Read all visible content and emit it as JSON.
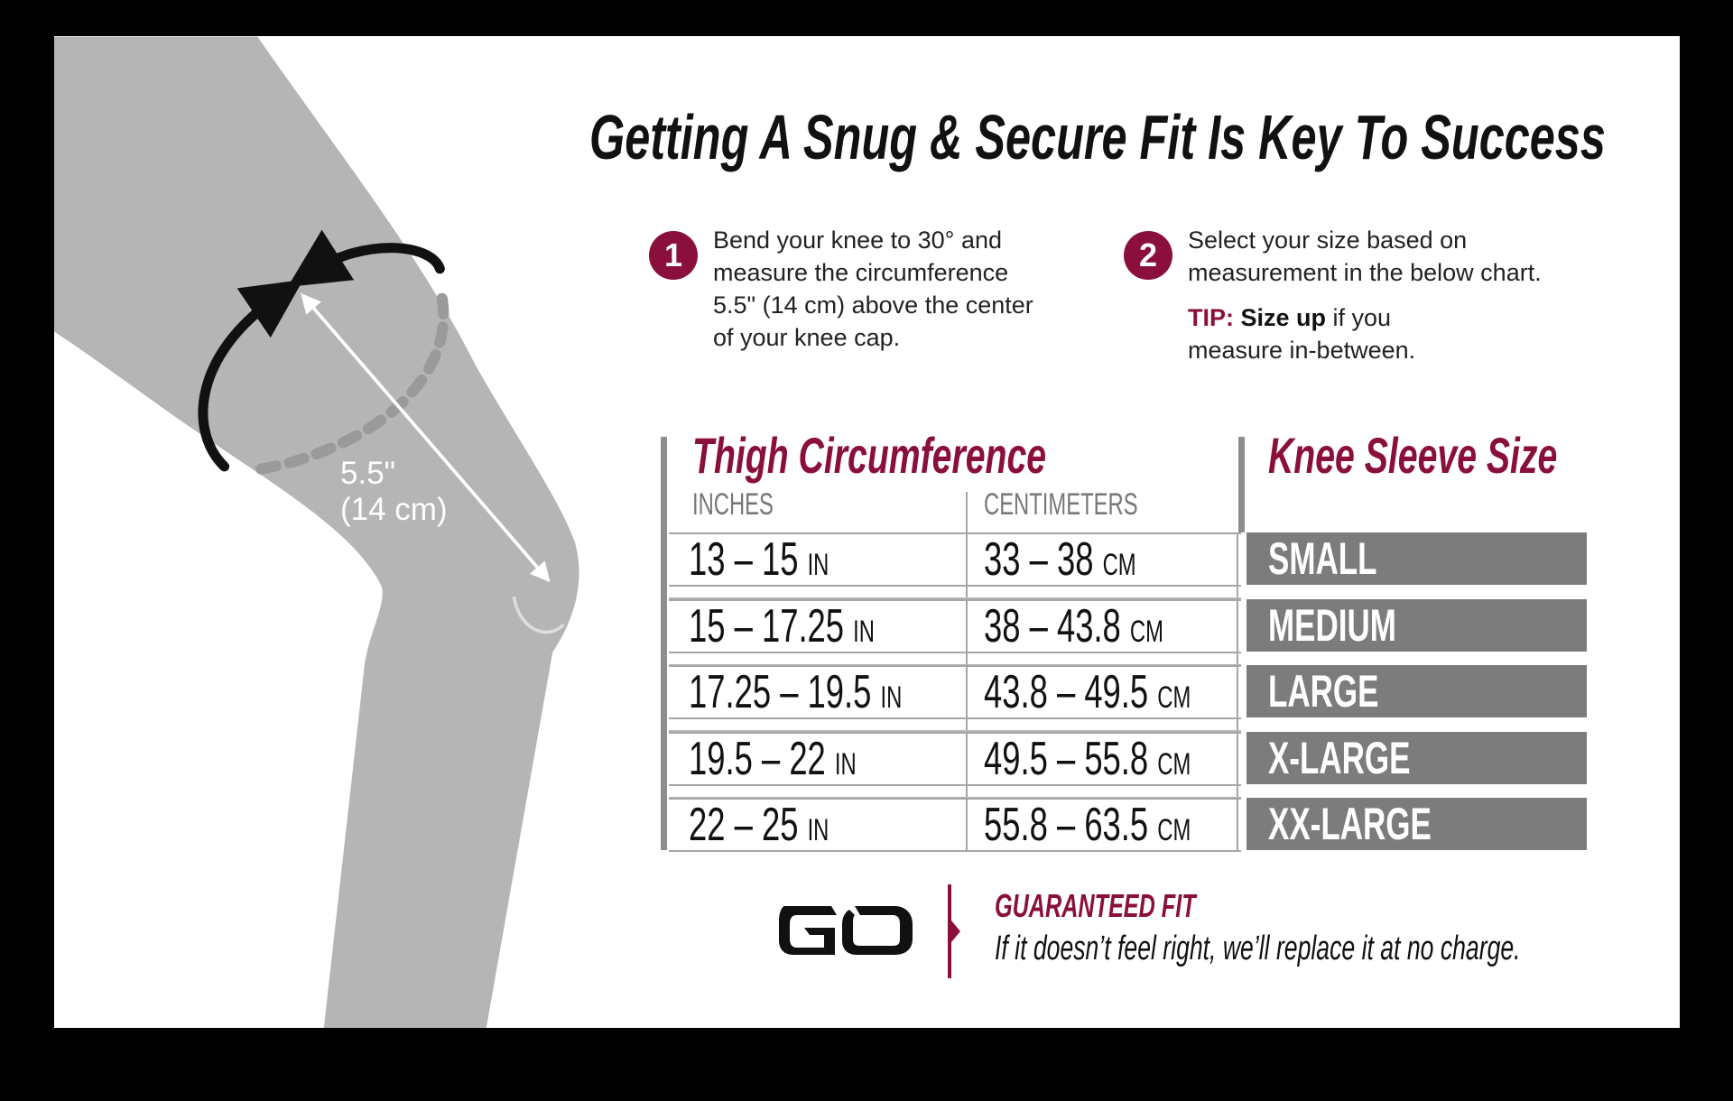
{
  "title": "Getting A Snug & Secure Fit Is Key To Success",
  "colors": {
    "accent": "#8a0f3c",
    "leg": "#b5b5b5",
    "size_cell": "#7c7c7c"
  },
  "diagram": {
    "measure_inches": "5.5\"",
    "measure_cm": "(14 cm)"
  },
  "steps": [
    {
      "number": "1",
      "lines": [
        "Bend your knee to 30° and",
        "measure the circumference",
        "5.5\" (14 cm) above the center",
        "of your knee cap."
      ]
    },
    {
      "number": "2",
      "lines": [
        "Select your size based on",
        "measurement in the below chart."
      ],
      "tip_label": "TIP:",
      "tip_bold": "Size up",
      "tip_rest": " if you",
      "tip_line2": "measure in-between."
    }
  ],
  "table": {
    "header_left": "Thigh Circumference",
    "header_right": "Knee Sleeve Size",
    "col_inches": "INCHES",
    "col_cm": "CENTIMETERS",
    "unit_in": "IN",
    "unit_cm": "CM",
    "rows": [
      {
        "inches": "13 – 15",
        "cm": "33 – 38",
        "size": "SMALL"
      },
      {
        "inches": "15 – 17.25",
        "cm": "38 – 43.8",
        "size": "MEDIUM"
      },
      {
        "inches": "17.25 – 19.5",
        "cm": "43.8 – 49.5",
        "size": "LARGE"
      },
      {
        "inches": "19.5 – 22",
        "cm": "49.5 – 55.8",
        "size": "X-LARGE"
      },
      {
        "inches": "22 – 25",
        "cm": "55.8 – 63.5",
        "size": "XX-LARGE"
      }
    ]
  },
  "footer": {
    "logo": "GO",
    "guarantee_title": "GUARANTEED FIT",
    "guarantee_text": "If it doesn’t feel right, we’ll replace it at no charge."
  }
}
